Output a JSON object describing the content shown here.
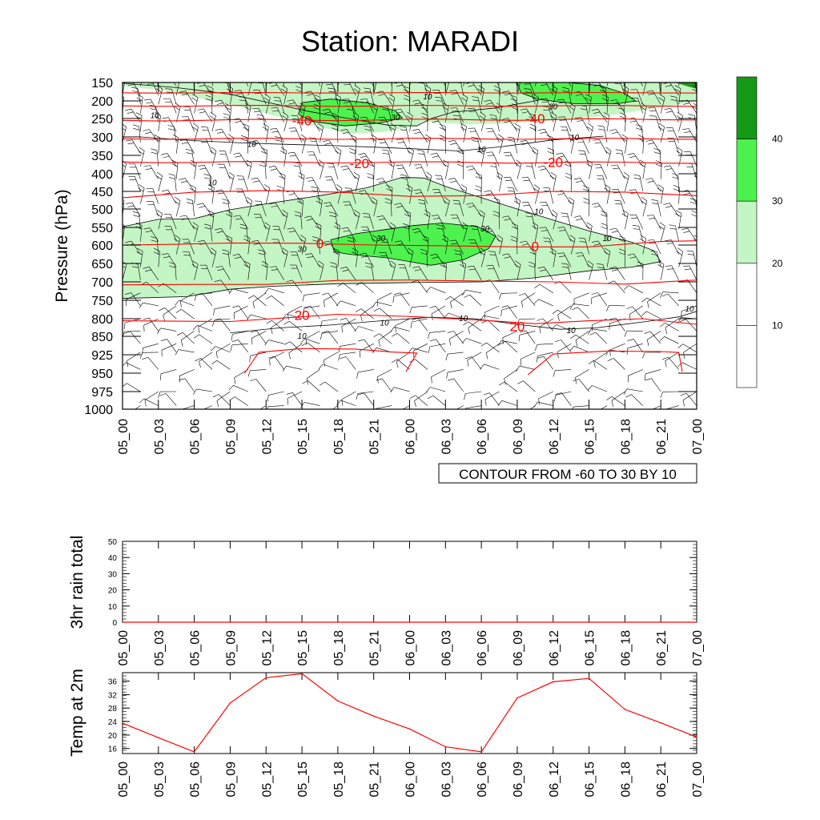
{
  "title": "Station: MARADI",
  "colors": {
    "axis": "#000000",
    "red": "#ff0000",
    "light_green": "#c4f5c4",
    "mid_green": "#4ef24e",
    "dark_green": "#169a16",
    "contour_black": "#000000",
    "barb": "#000000"
  },
  "time_labels": [
    "05_00",
    "05_03",
    "05_06",
    "05_09",
    "05_12",
    "05_15",
    "05_18",
    "05_21",
    "06_00",
    "06_03",
    "06_06",
    "06_09",
    "06_12",
    "06_15",
    "06_18",
    "06_21",
    "07_00"
  ],
  "chart_data": [
    {
      "type": "heatmap",
      "name": "pressure-time cross section",
      "ylabel": "Pressure (hPa)",
      "xlabel": "",
      "pressure_levels": [
        "150",
        "200",
        "250",
        "300",
        "350",
        "400",
        "450",
        "500",
        "550",
        "600",
        "650",
        "700",
        "750",
        "800",
        "850",
        "925",
        "950",
        "975",
        "1000"
      ],
      "fill_legend": {
        "levels": [
          "10",
          "20",
          "30",
          "40"
        ],
        "bins": [
          {
            "label": "<10",
            "color": "#ffffff"
          },
          {
            "label": "10-20",
            "color": "#ffffff"
          },
          {
            "label": "20-30",
            "color": "#c4f5c4"
          },
          {
            "label": "30-40",
            "color": "#4ef24e"
          },
          {
            "label": ">40",
            "color": "#169a16"
          }
        ]
      },
      "info_label": "CONTOUR FROM -60 TO 30 BY 10",
      "temperature_contour_labels": [
        {
          "text": "-40",
          "time_index": 5.0,
          "pressure": 255
        },
        {
          "text": "-40",
          "time_index": 11.5,
          "pressure": 250
        },
        {
          "text": "-20",
          "time_index": 6.6,
          "pressure": 372
        },
        {
          "text": "-20",
          "time_index": 12.0,
          "pressure": 368
        },
        {
          "text": "0",
          "time_index": 5.5,
          "pressure": 596
        },
        {
          "text": "0",
          "time_index": 11.5,
          "pressure": 603
        },
        {
          "text": "20",
          "time_index": 5.0,
          "pressure": 790
        },
        {
          "text": "20",
          "time_index": 11.0,
          "pressure": 822
        }
      ],
      "wind_contour_labels": [
        {
          "text": "10",
          "time_index": 0.9,
          "pressure": 240
        },
        {
          "text": "10",
          "time_index": 3.6,
          "pressure": 318
        },
        {
          "text": "10",
          "time_index": 8.5,
          "pressure": 187
        },
        {
          "text": "30",
          "time_index": 7.6,
          "pressure": 245
        },
        {
          "text": "30",
          "time_index": 12.0,
          "pressure": 215
        },
        {
          "text": "10",
          "time_index": 12.6,
          "pressure": 300
        },
        {
          "text": "10",
          "time_index": 10.0,
          "pressure": 333
        },
        {
          "text": "10",
          "time_index": 2.5,
          "pressure": 424
        },
        {
          "text": "10",
          "time_index": 11.6,
          "pressure": 505
        },
        {
          "text": "30",
          "time_index": 10.1,
          "pressure": 552
        },
        {
          "text": "30",
          "time_index": 7.2,
          "pressure": 580
        },
        {
          "text": "30",
          "time_index": 5.0,
          "pressure": 610
        },
        {
          "text": "10",
          "time_index": 13.5,
          "pressure": 580
        },
        {
          "text": "10",
          "time_index": 7.3,
          "pressure": 810
        },
        {
          "text": "10",
          "time_index": 9.5,
          "pressure": 798
        },
        {
          "text": "10",
          "time_index": 12.5,
          "pressure": 832
        },
        {
          "text": "10",
          "time_index": 5.0,
          "pressure": 848
        },
        {
          "text": "10",
          "time_index": 15.8,
          "pressure": 772
        }
      ]
    },
    {
      "type": "line",
      "name": "3hr rain total",
      "ylabel": "3hr rain total",
      "ylim": [
        0,
        50
      ],
      "yticks": [
        "0",
        "10",
        "20",
        "30",
        "40",
        "50"
      ],
      "x": [
        "05_00",
        "05_03",
        "05_06",
        "05_09",
        "05_12",
        "05_15",
        "05_18",
        "05_21",
        "06_00",
        "06_03",
        "06_06",
        "06_09",
        "06_12",
        "06_15",
        "06_18",
        "06_21",
        "07_00"
      ],
      "values": [
        0,
        0,
        0,
        0,
        0,
        0,
        0,
        0,
        0,
        0,
        0,
        0,
        0,
        0,
        0,
        0,
        0
      ]
    },
    {
      "type": "line",
      "name": "Temp at 2m",
      "ylabel": "Temp at 2m",
      "ylim": [
        14.5,
        38.5
      ],
      "yticks": [
        "16",
        "20",
        "24",
        "28",
        "32",
        "36"
      ],
      "x": [
        "05_00",
        "05_03",
        "05_06",
        "05_09",
        "05_12",
        "05_15",
        "05_18",
        "05_21",
        "06_00",
        "06_03",
        "06_06",
        "06_09",
        "06_12",
        "06_15",
        "06_18",
        "06_21",
        "07_00"
      ],
      "values": [
        23.5,
        19.2,
        15.0,
        29.5,
        37.0,
        38.2,
        30.1,
        25.6,
        21.8,
        16.5,
        15.0,
        31.0,
        35.8,
        36.8,
        27.6,
        23.6,
        19.4
      ]
    }
  ]
}
